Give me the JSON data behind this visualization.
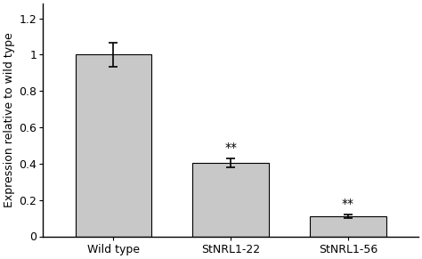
{
  "categories": [
    "Wild type",
    "StNRL1-22",
    "StNRL1-56"
  ],
  "values": [
    1.0,
    0.405,
    0.11
  ],
  "errors": [
    0.065,
    0.025,
    0.008
  ],
  "bar_color": "#c8c8c8",
  "bar_edgecolor": "#000000",
  "error_color": "#000000",
  "ylabel": "Expression relative to wild type",
  "ylim": [
    0,
    1.28
  ],
  "yticks": [
    0,
    0.2,
    0.4,
    0.6,
    0.8,
    1.0,
    1.2
  ],
  "ytick_labels": [
    "0",
    "0.2",
    "0.4",
    "0.6",
    "0.8",
    "1",
    "1.2"
  ],
  "significance": [
    "",
    "**",
    "**"
  ],
  "sig_fontsize": 10,
  "ylabel_fontsize": 9,
  "tick_fontsize": 9,
  "bar_width": 0.65,
  "figsize": [
    4.74,
    2.91
  ],
  "dpi": 100
}
